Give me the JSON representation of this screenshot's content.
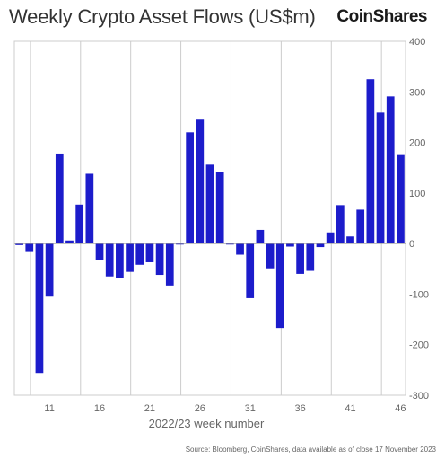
{
  "title": "Weekly Crypto Asset Flows (US$m)",
  "brand": "CoinShares",
  "source": "Source: Bloomberg, CoinShares, data available as of close 17 November 2023",
  "colors": {
    "bar": "#1c1ccb",
    "grid": "#cccccc",
    "axis": "#999999"
  },
  "chart_data": {
    "type": "bar",
    "title": "Weekly Crypto Asset Flows (US$m)",
    "xlabel": "2022/23 week number",
    "ylabel": "",
    "ylim": [
      -300,
      400
    ],
    "yticks": [
      400,
      300,
      200,
      100,
      0,
      -100,
      -200,
      -300
    ],
    "xticks": [
      11,
      16,
      21,
      26,
      31,
      36,
      41,
      46
    ],
    "grid": true,
    "x": [
      8,
      9,
      10,
      11,
      12,
      13,
      14,
      15,
      16,
      17,
      18,
      19,
      20,
      21,
      22,
      23,
      24,
      25,
      26,
      27,
      28,
      29,
      30,
      31,
      32,
      33,
      34,
      35,
      36,
      37,
      38,
      39,
      40,
      41,
      42,
      43,
      44,
      45,
      46
    ],
    "values": [
      -3,
      -15,
      -256,
      -105,
      178,
      6,
      77,
      138,
      -33,
      -65,
      -68,
      -56,
      -42,
      -37,
      -62,
      -83,
      -2,
      220,
      245,
      156,
      141,
      -2,
      -22,
      -108,
      27,
      -49,
      -167,
      -6,
      -60,
      -54,
      -7,
      22,
      76,
      14,
      67,
      325,
      259,
      291,
      175
    ]
  }
}
